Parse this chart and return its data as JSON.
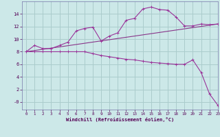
{
  "background_color": "#cce8e8",
  "grid_color": "#aacccc",
  "line_color_top": "#993399",
  "line_color_mid": "#883388",
  "line_color_bot": "#993399",
  "xlabel": "Windchill (Refroidissement éolien,°C)",
  "xlim": [
    -0.5,
    23
  ],
  "ylim": [
    -1.2,
    16
  ],
  "xticks": [
    0,
    1,
    2,
    3,
    4,
    5,
    6,
    7,
    8,
    9,
    10,
    11,
    12,
    13,
    14,
    15,
    16,
    17,
    18,
    19,
    20,
    21,
    22,
    23
  ],
  "yticks": [
    0,
    2,
    4,
    6,
    8,
    10,
    12,
    14
  ],
  "ytick_labels": [
    "-0",
    "2",
    "4",
    "6",
    "8",
    "10",
    "12",
    "14"
  ],
  "line1_x": [
    0,
    1,
    2,
    3,
    4,
    5,
    6,
    7,
    8,
    9,
    10,
    11,
    12,
    13,
    14,
    15,
    16,
    17,
    18,
    19,
    20,
    21,
    22,
    23
  ],
  "line1_y": [
    8.0,
    9.0,
    8.5,
    8.5,
    9.0,
    9.5,
    11.3,
    11.7,
    11.9,
    9.7,
    10.5,
    11.0,
    13.0,
    13.3,
    14.8,
    15.1,
    14.7,
    14.6,
    13.5,
    12.1,
    12.1,
    12.4,
    12.3,
    12.4
  ],
  "line2_x": [
    0,
    23
  ],
  "line2_y": [
    8.0,
    12.4
  ],
  "line3_x": [
    0,
    1,
    2,
    3,
    4,
    5,
    6,
    7,
    8,
    9,
    10,
    11,
    12,
    13,
    14,
    15,
    16,
    17,
    18,
    19,
    20,
    21,
    22,
    23
  ],
  "line3_y": [
    8.0,
    8.0,
    8.0,
    8.0,
    8.0,
    8.0,
    8.0,
    8.0,
    7.7,
    7.4,
    7.2,
    7.0,
    6.8,
    6.7,
    6.5,
    6.3,
    6.2,
    6.1,
    6.0,
    6.0,
    6.7,
    4.7,
    1.3,
    -0.5
  ]
}
